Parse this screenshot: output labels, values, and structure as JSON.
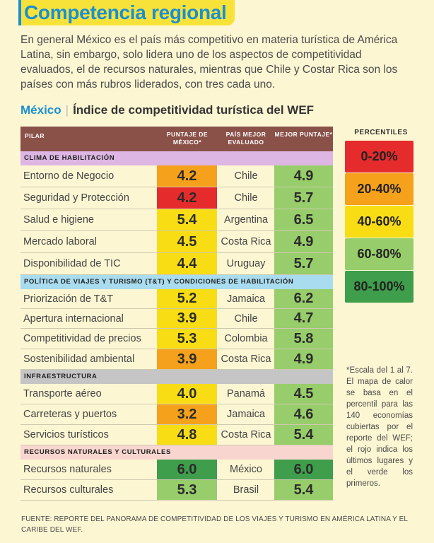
{
  "title": "Competencia regional",
  "intro": "En general México es el país más competitivo en materia turística de América Latina, sin embargo, solo lidera uno de los aspectos de competitividad evaluados, el de recursos naturales, mientras que Chile y Costar Rica son los países con más rubros liderados, con tres cada uno.",
  "subtitle": {
    "country": "México",
    "name": "Índice de competitividad turística del WEF"
  },
  "table": {
    "headers": {
      "pilar": "PILAR",
      "score": "PUNTAJE DE MÉXICO*",
      "best": "PAÍS MEJOR EVALUADO",
      "best_score": "MEJOR PUNTAJE*"
    },
    "sections": [
      {
        "title": "CLIMA DE HABILITACIÓN",
        "rows": [
          {
            "pilar": "Entorno de Negocio",
            "score": "4.2",
            "score_color": "#f6a11b",
            "best": "Chile",
            "best_score": "4.9"
          },
          {
            "pilar": "Seguridad y Protección",
            "score": "4.2",
            "score_color": "#e52b2b",
            "best": "Chile",
            "best_score": "5.7"
          },
          {
            "pilar": "Salud e higiene",
            "score": "5.4",
            "score_color": "#f8dd15",
            "best": "Argentina",
            "best_score": "6.5"
          },
          {
            "pilar": "Mercado laboral",
            "score": "4.5",
            "score_color": "#f8dd15",
            "best": "Costa Rica",
            "best_score": "4.9"
          },
          {
            "pilar": "Disponibilidad de TIC",
            "score": "4.4",
            "score_color": "#f8dd15",
            "best": "Uruguay",
            "best_score": "5.7"
          }
        ]
      },
      {
        "title": "POLÍTICA DE VIAJES Y TURISMO (T&T) Y CONDICIONES DE HABILITACIÓN",
        "rows": [
          {
            "pilar": "Priorización de T&T",
            "score": "5.2",
            "score_color": "#f8dd15",
            "best": "Jamaica",
            "best_score": "6.2"
          },
          {
            "pilar": "Apertura internacional",
            "score": "3.9",
            "score_color": "#f8dd15",
            "best": "Chile",
            "best_score": "4.7"
          },
          {
            "pilar": "Competitividad de precios",
            "score": "5.3",
            "score_color": "#f8dd15",
            "best": "Colombia",
            "best_score": "5.8"
          },
          {
            "pilar": "Sostenibilidad ambiental",
            "score": "3.9",
            "score_color": "#f6a11b",
            "best": "Costa Rica",
            "best_score": "4.9"
          }
        ]
      },
      {
        "title": "INFRAESTRUCTURA",
        "rows": [
          {
            "pilar": "Transporte aéreo",
            "score": "4.0",
            "score_color": "#f8dd15",
            "best": "Panamá",
            "best_score": "4.5"
          },
          {
            "pilar": "Carreteras y puertos",
            "score": "3.2",
            "score_color": "#f6a11b",
            "best": "Jamaica",
            "best_score": "4.6"
          },
          {
            "pilar": "Servicios turísticos",
            "score": "4.8",
            "score_color": "#f8dd15",
            "best": "Costa Rica",
            "best_score": "5.4"
          }
        ]
      },
      {
        "title": "RECURSOS NATURALES Y CULTURALES",
        "rows": [
          {
            "pilar": "Recursos naturales",
            "score": "6.0",
            "score_color": "#3e9e4b",
            "best": "México",
            "best_score": "6.0"
          },
          {
            "pilar": "Recursos culturales",
            "score": "5.3",
            "score_color": "#98cd6b",
            "best": "Brasil",
            "best_score": "5.4"
          }
        ]
      }
    ]
  },
  "colors": {
    "best_score": "#98cd6b",
    "best_score_top": "#3e9e4b"
  },
  "percentiles": {
    "title": "PERCENTILES",
    "items": [
      {
        "label": "0-20%",
        "color": "#e52b2b"
      },
      {
        "label": "20-40%",
        "color": "#f6a11b"
      },
      {
        "label": "40-60%",
        "color": "#f8dd15"
      },
      {
        "label": "60-80%",
        "color": "#98cd6b"
      },
      {
        "label": "80-100%",
        "color": "#3e9e4b"
      }
    ]
  },
  "note": "*Escala del 1 al 7. El mapa de calor se basa en el percentil para las 140 economías cubiertas por el reporte del WEF; el rojo indica los últimos lugares y el verde los primeros.",
  "footer": "FUENTE: REPORTE DEL PANORAMA DE COMPETITIVIDAD DE LOS VIAJES Y TURISMO EN AMÉRICA LATINA Y EL CARIBE DEL WEF."
}
